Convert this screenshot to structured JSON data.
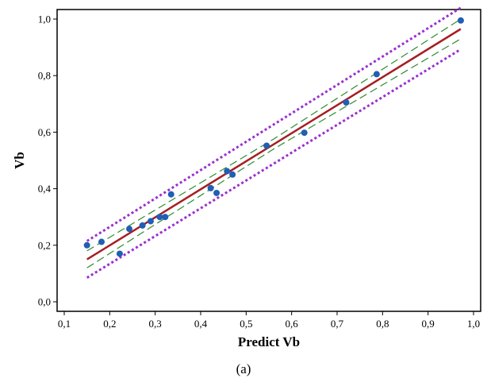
{
  "chart_data": {
    "type": "scatter",
    "title": "",
    "xlabel": "Predict Vb",
    "ylabel": "Vb",
    "xlim": [
      0.1,
      1.0
    ],
    "ylim": [
      0.0,
      1.0
    ],
    "grid": false,
    "xticks": [
      "0,1",
      "0,2",
      "0,3",
      "0,4",
      "0,5",
      "0,6",
      "0,7",
      "0,8",
      "0,9",
      "1,0"
    ],
    "yticks": [
      "0,0",
      "0,2",
      "0,4",
      "0,6",
      "0,8",
      "1,0"
    ],
    "points": {
      "color": "#1f5fb4",
      "x": [
        0.15,
        0.182,
        0.222,
        0.243,
        0.272,
        0.29,
        0.31,
        0.322,
        0.335,
        0.422,
        0.435,
        0.458,
        0.47,
        0.545,
        0.628,
        0.72,
        0.787,
        0.972
      ],
      "y": [
        0.2,
        0.212,
        0.17,
        0.258,
        0.27,
        0.285,
        0.3,
        0.3,
        0.38,
        0.402,
        0.385,
        0.462,
        0.45,
        0.552,
        0.598,
        0.705,
        0.805,
        0.995
      ]
    },
    "fit_line": {
      "color": "#a51e22",
      "x": [
        0.15,
        0.972
      ],
      "y": [
        0.15,
        0.965
      ]
    },
    "confidence_band": {
      "color": "#2e8b2e",
      "upper": {
        "x": [
          0.15,
          0.56,
          0.972
        ],
        "y": [
          0.18,
          0.575,
          1.0
        ]
      },
      "lower": {
        "x": [
          0.15,
          0.56,
          0.972
        ],
        "y": [
          0.12,
          0.54,
          0.93
        ]
      }
    },
    "prediction_band": {
      "color": "#9b30d0",
      "upper": {
        "x": [
          0.15,
          0.972
        ],
        "y": [
          0.215,
          1.04
        ]
      },
      "lower": {
        "x": [
          0.15,
          0.972
        ],
        "y": [
          0.085,
          0.893
        ]
      }
    }
  },
  "caption": "(a)"
}
